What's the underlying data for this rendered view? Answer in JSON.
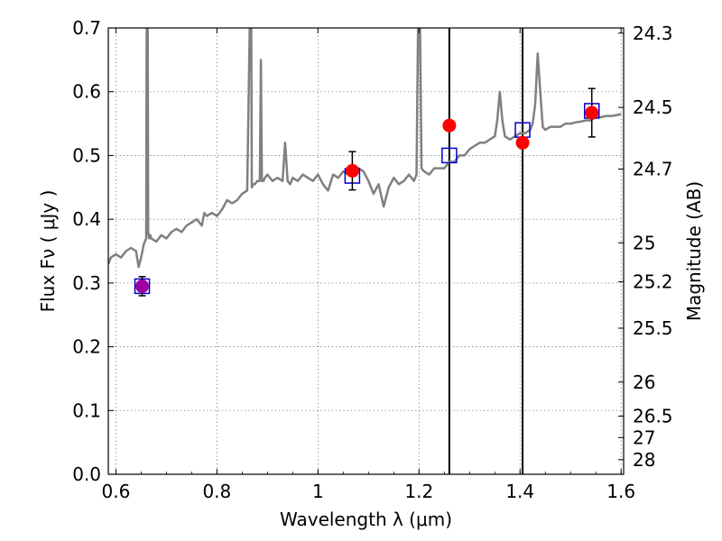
{
  "chart_data": {
    "type": "scatter",
    "xlabel": "Wavelength  λ (μm)",
    "ylabel": "Flux  Fν  ( μJy )",
    "ylabel_right": "Magnitude (AB)",
    "xlim": [
      0.585,
      1.605
    ],
    "ylim": [
      0.0,
      0.7
    ],
    "grid": true,
    "x_ticks": [
      0.6,
      0.8,
      1.0,
      1.2,
      1.4,
      1.6
    ],
    "x_tick_labels": [
      "0.6",
      "0.8",
      "1",
      "1.2",
      "1.4",
      "1.6"
    ],
    "y_ticks": [
      0.0,
      0.1,
      0.2,
      0.3,
      0.4,
      0.5,
      0.6,
      0.7
    ],
    "y_tick_labels": [
      "0.0",
      "0.1",
      "0.2",
      "0.3",
      "0.4",
      "0.5",
      "0.6",
      "0.7"
    ],
    "mag_ticks": [
      "24.3",
      "24.5",
      "24.7",
      "25",
      "25.2",
      "25.5",
      "26",
      "26.5",
      "27",
      "28"
    ],
    "vertical_lines": [
      1.26,
      1.405
    ],
    "colors": {
      "spectrum": "#808080",
      "observed": "#ff0000",
      "model": "#0000cc",
      "overlap": "#a000a0",
      "errorbar": "#000000"
    },
    "series": [
      {
        "kind": "spectrum",
        "x": [
          0.585,
          0.59,
          0.6,
          0.61,
          0.62,
          0.63,
          0.64,
          0.645,
          0.65,
          0.655,
          0.66,
          0.661,
          0.662,
          0.663,
          0.664,
          0.666,
          0.668,
          0.67,
          0.68,
          0.69,
          0.7,
          0.71,
          0.72,
          0.73,
          0.74,
          0.75,
          0.76,
          0.77,
          0.775,
          0.78,
          0.79,
          0.8,
          0.81,
          0.82,
          0.83,
          0.84,
          0.85,
          0.86,
          0.865,
          0.868,
          0.869,
          0.872,
          0.875,
          0.88,
          0.885,
          0.887,
          0.889,
          0.892,
          0.895,
          0.9,
          0.91,
          0.92,
          0.93,
          0.935,
          0.94,
          0.945,
          0.95,
          0.96,
          0.97,
          0.98,
          0.99,
          1.0,
          1.01,
          1.02,
          1.03,
          1.04,
          1.05,
          1.06,
          1.07,
          1.08,
          1.09,
          1.1,
          1.11,
          1.12,
          1.13,
          1.14,
          1.15,
          1.16,
          1.17,
          1.18,
          1.19,
          1.195,
          1.198,
          1.2,
          1.202,
          1.205,
          1.21,
          1.22,
          1.23,
          1.24,
          1.25,
          1.26,
          1.27,
          1.28,
          1.29,
          1.3,
          1.31,
          1.32,
          1.33,
          1.34,
          1.35,
          1.355,
          1.36,
          1.365,
          1.37,
          1.38,
          1.39,
          1.4,
          1.41,
          1.42,
          1.425,
          1.43,
          1.435,
          1.44,
          1.445,
          1.45,
          1.46,
          1.47,
          1.48,
          1.49,
          1.5,
          1.51,
          1.52,
          1.53,
          1.54,
          1.55,
          1.56,
          1.57,
          1.58,
          1.59,
          1.6
        ],
        "y": [
          0.33,
          0.34,
          0.345,
          0.34,
          0.35,
          0.355,
          0.35,
          0.325,
          0.34,
          0.36,
          0.37,
          0.7,
          0.7,
          0.7,
          0.38,
          0.37,
          0.375,
          0.37,
          0.365,
          0.375,
          0.37,
          0.38,
          0.385,
          0.38,
          0.39,
          0.395,
          0.4,
          0.39,
          0.41,
          0.405,
          0.41,
          0.405,
          0.415,
          0.43,
          0.425,
          0.43,
          0.44,
          0.445,
          0.7,
          0.7,
          0.45,
          0.455,
          0.455,
          0.46,
          0.46,
          0.65,
          0.46,
          0.46,
          0.465,
          0.47,
          0.46,
          0.465,
          0.46,
          0.52,
          0.46,
          0.455,
          0.465,
          0.46,
          0.47,
          0.465,
          0.46,
          0.47,
          0.455,
          0.445,
          0.47,
          0.465,
          0.475,
          0.47,
          0.47,
          0.48,
          0.475,
          0.46,
          0.44,
          0.455,
          0.42,
          0.45,
          0.465,
          0.455,
          0.46,
          0.47,
          0.46,
          0.47,
          0.7,
          0.7,
          0.7,
          0.48,
          0.475,
          0.47,
          0.48,
          0.48,
          0.48,
          0.49,
          0.49,
          0.5,
          0.5,
          0.51,
          0.515,
          0.52,
          0.52,
          0.525,
          0.53,
          0.555,
          0.6,
          0.555,
          0.53,
          0.525,
          0.53,
          0.535,
          0.535,
          0.54,
          0.55,
          0.58,
          0.66,
          0.6,
          0.545,
          0.54,
          0.545,
          0.545,
          0.545,
          0.55,
          0.55,
          0.552,
          0.553,
          0.555,
          0.555,
          0.56,
          0.56,
          0.562,
          0.562,
          0.563,
          0.565
        ]
      },
      {
        "name": "",
        "kind": "observed",
        "x": [
          0.652,
          1.068,
          1.26,
          1.405,
          1.542
        ],
        "y": [
          0.295,
          0.476,
          0.547,
          0.52,
          0.567
        ],
        "yerr": [
          0.015,
          0.03,
          null,
          null,
          0.038
        ]
      },
      {
        "name": "",
        "kind": "model",
        "x": [
          0.652,
          1.068,
          1.26,
          1.405,
          1.542
        ],
        "y": [
          0.295,
          0.468,
          0.5,
          0.54,
          0.57
        ]
      }
    ]
  }
}
